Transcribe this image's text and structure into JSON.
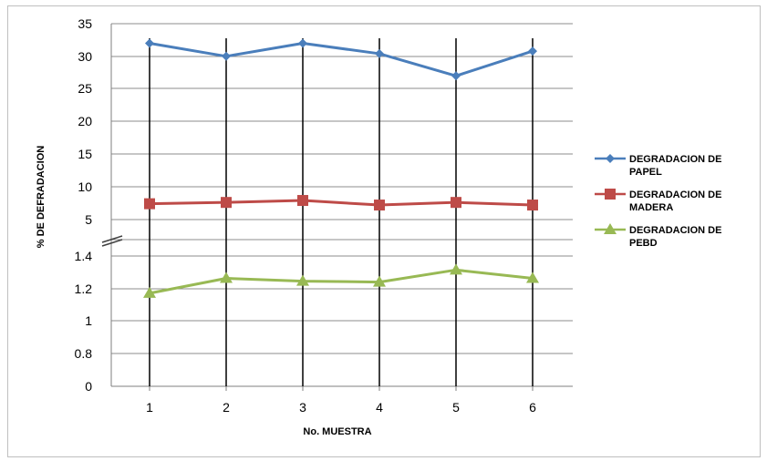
{
  "chart_data": {
    "type": "line",
    "xlabel": "No. MUESTRA",
    "ylabel": "% DE DEFRADACION",
    "categories": [
      "1",
      "2",
      "3",
      "4",
      "5",
      "6"
    ],
    "y_ticks_upper": [
      "35",
      "30",
      "25",
      "20",
      "15",
      "10",
      "5"
    ],
    "y_ticks_lower": [
      "1.4",
      "1.2",
      "1",
      "0.8",
      "0"
    ],
    "axis_break": true,
    "grid": true,
    "legend_position": "right",
    "series": [
      {
        "name": "DEGRADACION  DE PAPEL",
        "segment": "upper",
        "marker": "diamond",
        "color": "#4a7ebb",
        "values": [
          32,
          30,
          32,
          30.4,
          27,
          30.8
        ]
      },
      {
        "name": "DEGRADACION DE MADERA",
        "segment": "upper",
        "marker": "square",
        "color": "#be4b48",
        "values": [
          7.4,
          7.6,
          7.9,
          7.2,
          7.6,
          7.2
        ]
      },
      {
        "name": "DEGRADACION DE PEBD",
        "segment": "lower",
        "marker": "triangle",
        "color": "#98b954",
        "values": [
          1.0,
          1.16,
          1.13,
          1.12,
          1.25,
          1.16
        ]
      }
    ]
  }
}
